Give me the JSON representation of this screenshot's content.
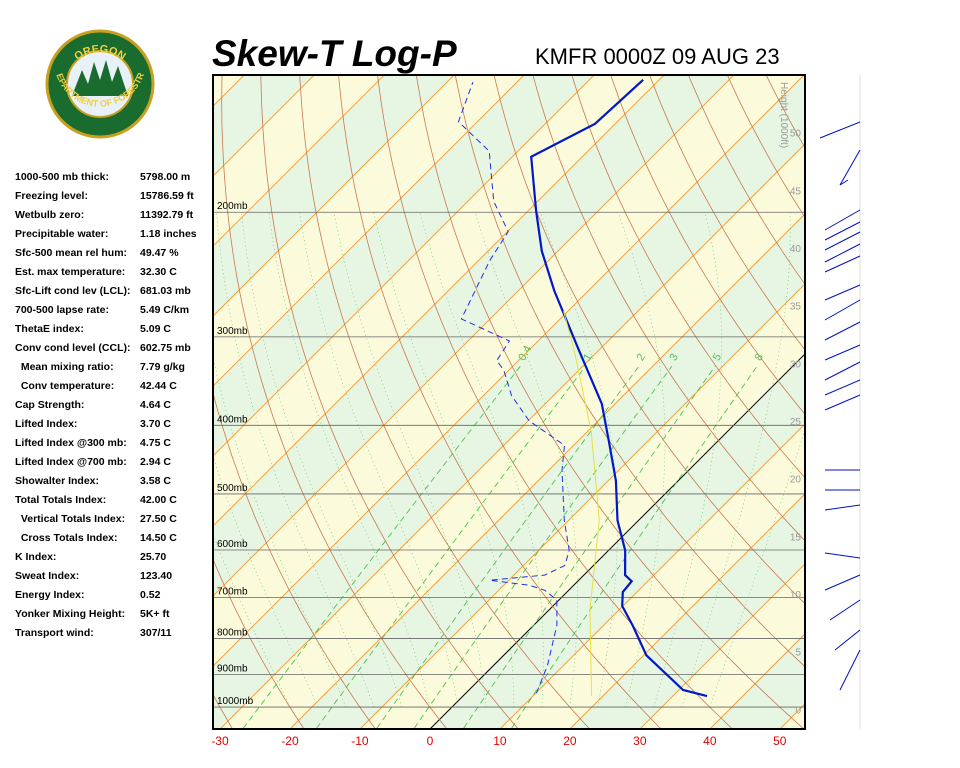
{
  "logo": {
    "top": "OREGON",
    "bottom": "DEPARTMENT OF FORESTRY"
  },
  "indices": {
    "rows": [
      [
        "1000-500 mb thick:",
        "5798.00 m"
      ],
      [
        "Freezing level:",
        "15786.59 ft"
      ],
      [
        "Wetbulb zero:",
        "11392.79 ft"
      ],
      [
        "Precipitable water:",
        "1.18 inches"
      ],
      [
        "Sfc-500 mean rel hum:",
        "49.47 %"
      ],
      [
        "Est. max temperature:",
        "32.30 C"
      ],
      [
        "Sfc-Lift cond lev (LCL):",
        "681.03 mb"
      ],
      [
        "700-500 lapse rate:",
        "5.49 C/km"
      ],
      [
        "ThetaE index:",
        "5.09 C"
      ],
      [
        "Conv cond level (CCL):",
        "602.75 mb"
      ],
      [
        "  Mean mixing ratio:",
        "7.79 g/kg"
      ],
      [
        "  Conv temperature:",
        "42.44 C"
      ],
      [
        "Cap Strength:",
        "4.64 C"
      ],
      [
        "Lifted Index:",
        "3.70 C"
      ],
      [
        "Lifted Index @300 mb:",
        "4.75 C"
      ],
      [
        "Lifted Index @700 mb:",
        "2.94 C"
      ],
      [
        "Showalter Index:",
        "3.58 C"
      ],
      [
        "Total Totals Index:",
        "42.00 C"
      ],
      [
        "  Vertical Totals Index:",
        "27.50 C"
      ],
      [
        "  Cross Totals Index:",
        "14.50 C"
      ],
      [
        "K Index:",
        "25.70"
      ],
      [
        "Sweat Index:",
        "123.40"
      ],
      [
        "Energy Index:",
        "0.52"
      ],
      [
        "Yonker Mixing Height:",
        "5K+ ft"
      ],
      [
        "Transport wind:",
        "307/11"
      ]
    ]
  },
  "chart_data": {
    "type": "skew-t",
    "title": "Skew-T Log-P",
    "subtitle": "KMFR 0000Z 09 AUG 23",
    "xlim": [
      -31,
      53.6
    ],
    "xticks": [
      -30,
      -20,
      -10,
      0,
      10,
      20,
      30,
      40,
      50
    ],
    "ylim": [
      1074,
      128
    ],
    "log_y": true,
    "yticks": [
      {
        "value": 200,
        "label": "200mb"
      },
      {
        "value": 300,
        "label": "300mb"
      },
      {
        "value": 400,
        "label": "400mb"
      },
      {
        "value": 500,
        "label": "500mb"
      },
      {
        "value": 600,
        "label": "600mb"
      },
      {
        "value": 700,
        "label": "700mb"
      },
      {
        "value": 800,
        "label": "800mb"
      },
      {
        "value": 900,
        "label": "900mb"
      },
      {
        "value": 1000,
        "label": "1000mb"
      }
    ],
    "height_label": "Height (1000ft)",
    "height_lim": [
      -1.7,
      55
    ],
    "height_ticks": [
      0,
      5,
      10,
      15,
      20,
      25,
      30,
      35,
      40,
      45,
      50
    ],
    "mixing_ratio_labels": [
      0.4,
      1,
      2,
      3,
      5,
      8
    ],
    "series": [
      {
        "color": "#0018c8",
        "width": 2.2,
        "dashed": false,
        "values": [
          34.9,
          30.6,
          20.4,
          14.1,
          9.9,
          8.0,
          7.7,
          5.9,
          2.4,
          -3.0,
          -8.9,
          -15.7,
          -21.9,
          -32.7,
          -44.9,
          -52.3,
          -58.9,
          -67.3,
          -62.9,
          -62.3
        ],
        "pressures": [
          965,
          946,
          845,
          766,
          720,
          688,
          664,
          651,
          601,
          545,
          479,
          420,
          373,
          314,
          258,
          227,
          199,
          167,
          150,
          130
        ]
      },
      {
        "color": "#2030e0",
        "width": 1,
        "dashed": true,
        "values": [
          10.1,
          7.7,
          3.3,
          -0.3,
          -3.4,
          -6.3,
          -12.7,
          -5.6,
          -4.1,
          -5.6,
          -10.6,
          -18.1,
          -21.3,
          -29.9,
          -36.0,
          -40.6,
          -43.1,
          -44.1,
          -54.1,
          -58.4,
          -59.9,
          -66.3,
          -74.1,
          -82.7,
          -86.3
        ],
        "pressures": [
          956,
          873,
          766,
          706,
          684,
          673,
          662,
          651,
          631,
          601,
          545,
          463,
          427,
          394,
          363,
          335,
          324,
          304,
          283,
          234,
          213,
          193,
          164,
          149,
          131
        ]
      },
      {
        "color": "#e8e040",
        "width": 1,
        "dashed": false,
        "values": [
          18.4,
          5.9,
          -5.6,
          -19.6,
          -33.4,
          -40.6
        ],
        "pressures": [
          965,
          730,
          545,
          407,
          314,
          276
        ]
      }
    ]
  }
}
